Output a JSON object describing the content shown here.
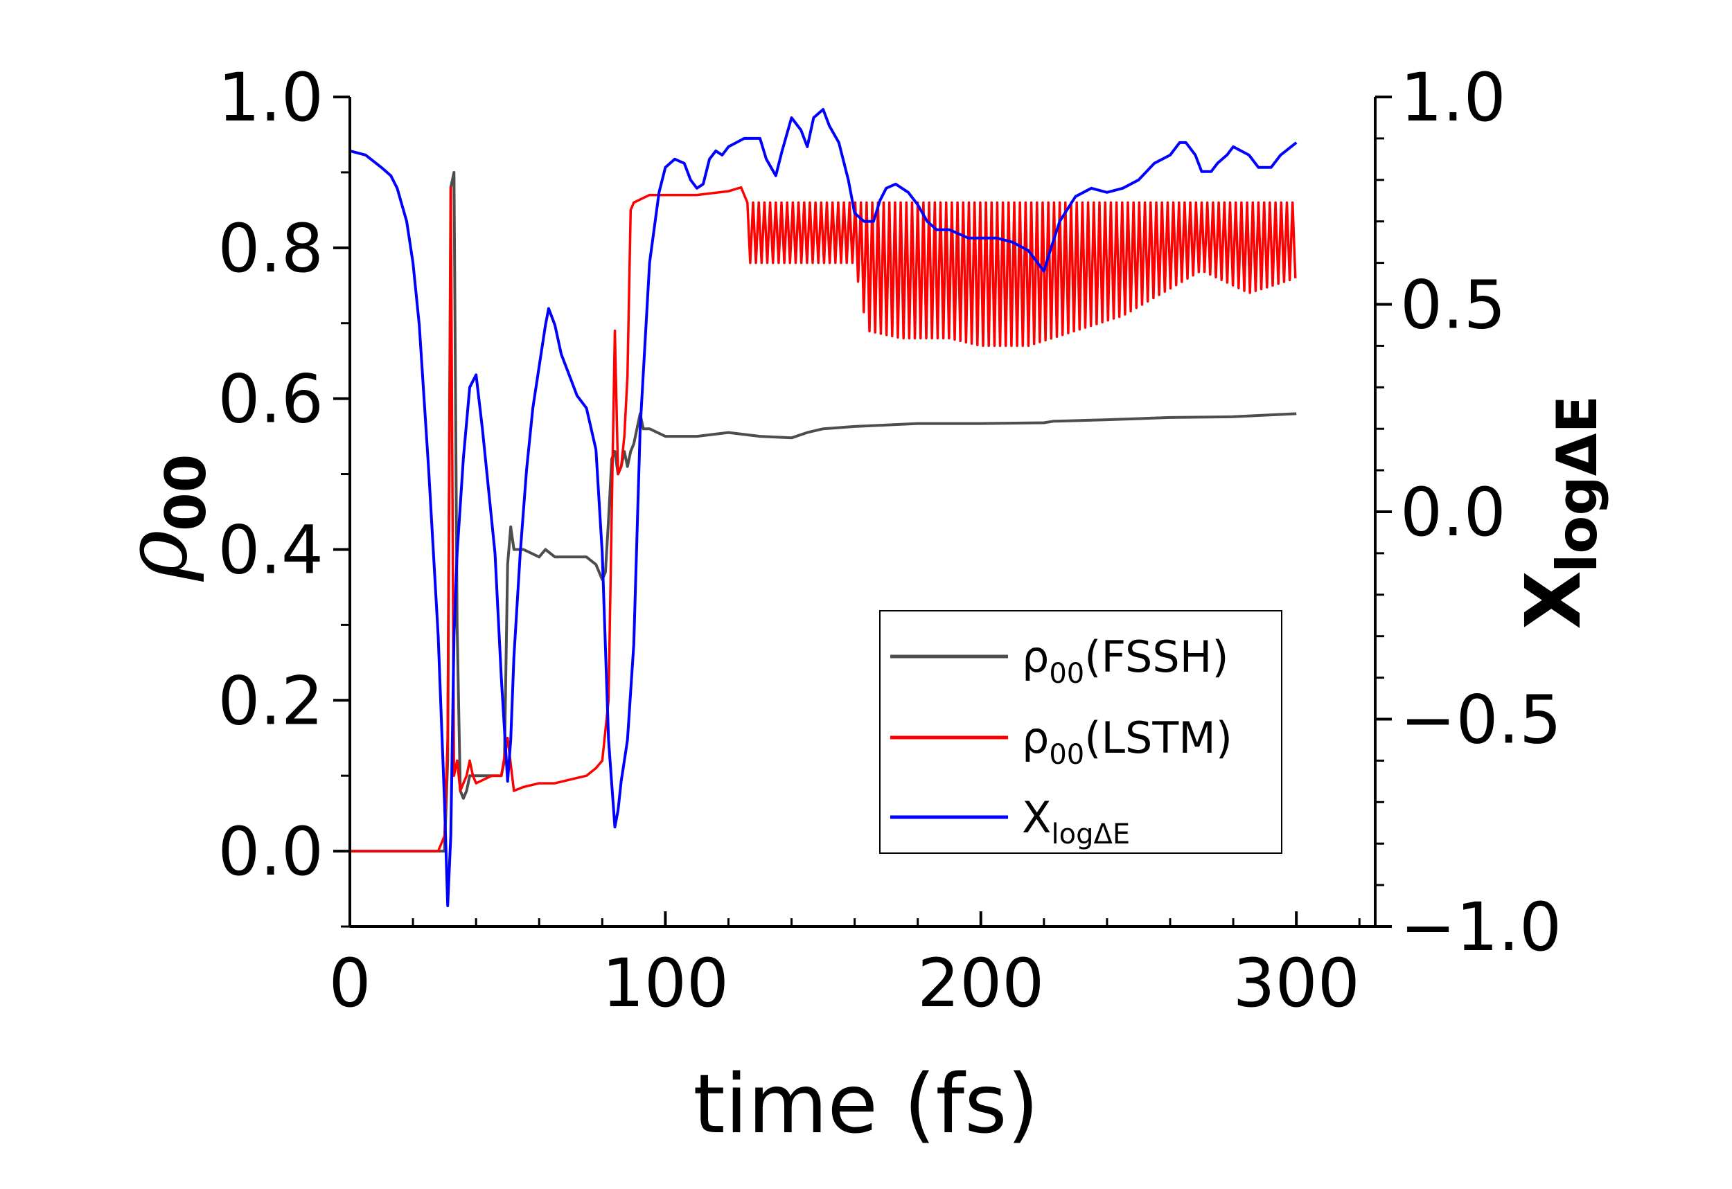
{
  "chart_data": {
    "type": "line",
    "xlabel": "time (fs)",
    "ylabel": {
      "main": "ρ",
      "sub": "00"
    },
    "y2label": {
      "main": "X",
      "sub": "logΔE"
    },
    "xlim": [
      0,
      325
    ],
    "ylim": [
      -0.1,
      1.0
    ],
    "y2lim": [
      -1.0,
      1.0
    ],
    "xticks": [
      0,
      100,
      200,
      300
    ],
    "xtick_labels": [
      "0",
      "100",
      "200",
      "300"
    ],
    "yticks": [
      0.0,
      0.2,
      0.4,
      0.6,
      0.8,
      1.0
    ],
    "ytick_labels": [
      "0.0",
      "0.2",
      "0.4",
      "0.6",
      "0.8",
      "1.0"
    ],
    "y2ticks": [
      -1.0,
      -0.5,
      0.0,
      0.5,
      1.0
    ],
    "y2tick_labels": [
      "−1.0",
      "−0.5",
      "0.0",
      "0.5",
      "1.0"
    ],
    "legend_position": "bottom-right",
    "series": [
      {
        "name": "ρ00(FSSH)",
        "legend_main": "ρ",
        "legend_sub": "00",
        "legend_tail": "(FSSH)",
        "color": "#4d4d4d",
        "axis": "left",
        "x": [
          0,
          30,
          31,
          32,
          33,
          34,
          35,
          36,
          37,
          38,
          40,
          45,
          48,
          49,
          50,
          51,
          52,
          55,
          60,
          62,
          65,
          70,
          75,
          78,
          80,
          81,
          82,
          83,
          84,
          85,
          86,
          87,
          88,
          89,
          90,
          91,
          92,
          93,
          95,
          100,
          110,
          120,
          130,
          140,
          145,
          150,
          160,
          170,
          180,
          200,
          220,
          223,
          240,
          260,
          280,
          300
        ],
        "values": [
          0.0,
          0.0,
          0.12,
          0.88,
          0.9,
          0.3,
          0.08,
          0.07,
          0.08,
          0.1,
          0.1,
          0.1,
          0.1,
          0.12,
          0.38,
          0.43,
          0.4,
          0.4,
          0.39,
          0.4,
          0.39,
          0.39,
          0.39,
          0.38,
          0.36,
          0.37,
          0.44,
          0.52,
          0.53,
          0.5,
          0.51,
          0.53,
          0.51,
          0.53,
          0.54,
          0.56,
          0.58,
          0.56,
          0.56,
          0.55,
          0.55,
          0.555,
          0.55,
          0.548,
          0.555,
          0.56,
          0.563,
          0.565,
          0.567,
          0.567,
          0.568,
          0.57,
          0.572,
          0.575,
          0.576,
          0.58
        ]
      },
      {
        "name": "ρ00(LSTM)",
        "legend_main": "ρ",
        "legend_sub": "00",
        "legend_tail": "(LSTM)",
        "color": "#ff0000",
        "axis": "left",
        "x": [
          0,
          28,
          30,
          31,
          32,
          33,
          34,
          35,
          36,
          37,
          38,
          39,
          40,
          45,
          48,
          50,
          52,
          55,
          60,
          65,
          70,
          75,
          78,
          80,
          82,
          83,
          84,
          85,
          86,
          87,
          88,
          89,
          90,
          95,
          100,
          110,
          120,
          124
        ],
        "values": [
          0.0,
          0.0,
          0.02,
          0.15,
          0.88,
          0.1,
          0.12,
          0.08,
          0.09,
          0.1,
          0.12,
          0.1,
          0.09,
          0.1,
          0.1,
          0.15,
          0.08,
          0.085,
          0.09,
          0.09,
          0.095,
          0.1,
          0.11,
          0.12,
          0.2,
          0.45,
          0.69,
          0.5,
          0.51,
          0.55,
          0.63,
          0.85,
          0.86,
          0.87,
          0.87,
          0.87,
          0.875,
          0.88
        ],
        "oscillation": {
          "x_start": 126,
          "x_end": 300,
          "upper": 0.86,
          "lower_control_x": [
            126,
            160,
            164,
            175,
            190,
            200,
            215,
            230,
            245,
            270,
            285,
            300
          ],
          "lower_control_y": [
            0.78,
            0.78,
            0.69,
            0.68,
            0.68,
            0.67,
            0.67,
            0.69,
            0.71,
            0.77,
            0.74,
            0.76
          ]
        }
      },
      {
        "name": "XlogΔE",
        "legend_main": "X",
        "legend_sub": "logΔE",
        "legend_tail": "",
        "color": "#0000ff",
        "axis": "right",
        "x": [
          0,
          5,
          10,
          13,
          15,
          18,
          20,
          22,
          25,
          28,
          30,
          31,
          32,
          33,
          34,
          36,
          38,
          40,
          42,
          44,
          46,
          48,
          50,
          51,
          52,
          54,
          56,
          58,
          60,
          62,
          63,
          65,
          67,
          70,
          72,
          75,
          78,
          80,
          82,
          84,
          85,
          86,
          87,
          88,
          90,
          92,
          95,
          98,
          100,
          103,
          106,
          108,
          110,
          112,
          114,
          116,
          118,
          120,
          125,
          130,
          132,
          135,
          137,
          140,
          143,
          145,
          147,
          150,
          152,
          155,
          158,
          160,
          163,
          166,
          168,
          170,
          173,
          177,
          180,
          183,
          186,
          190,
          193,
          196,
          200,
          205,
          210,
          215,
          220,
          222,
          225,
          230,
          235,
          240,
          245,
          250,
          255,
          260,
          263,
          265,
          268,
          270,
          273,
          275,
          278,
          280,
          285,
          288,
          292,
          295,
          300
        ],
        "values": [
          0.87,
          0.86,
          0.83,
          0.81,
          0.78,
          0.7,
          0.6,
          0.45,
          0.1,
          -0.3,
          -0.7,
          -0.95,
          -0.78,
          -0.3,
          -0.1,
          0.13,
          0.3,
          0.33,
          0.2,
          0.05,
          -0.1,
          -0.4,
          -0.65,
          -0.55,
          -0.35,
          -0.1,
          0.1,
          0.25,
          0.35,
          0.45,
          0.49,
          0.45,
          0.38,
          0.32,
          0.28,
          0.25,
          0.15,
          -0.1,
          -0.55,
          -0.76,
          -0.72,
          -0.65,
          -0.6,
          -0.55,
          -0.32,
          0.2,
          0.6,
          0.77,
          0.83,
          0.85,
          0.84,
          0.8,
          0.78,
          0.79,
          0.85,
          0.87,
          0.86,
          0.88,
          0.9,
          0.9,
          0.85,
          0.81,
          0.87,
          0.95,
          0.92,
          0.88,
          0.95,
          0.97,
          0.93,
          0.89,
          0.8,
          0.72,
          0.7,
          0.7,
          0.75,
          0.78,
          0.79,
          0.77,
          0.74,
          0.7,
          0.68,
          0.68,
          0.67,
          0.66,
          0.66,
          0.66,
          0.65,
          0.63,
          0.58,
          0.63,
          0.7,
          0.76,
          0.78,
          0.77,
          0.78,
          0.8,
          0.84,
          0.86,
          0.89,
          0.89,
          0.86,
          0.82,
          0.82,
          0.84,
          0.86,
          0.88,
          0.86,
          0.83,
          0.83,
          0.86,
          0.89
        ]
      }
    ]
  }
}
